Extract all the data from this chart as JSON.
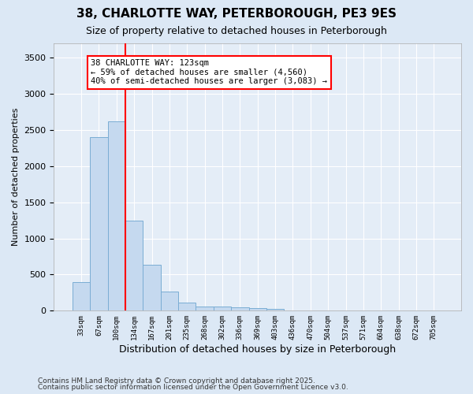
{
  "title_line1": "38, CHARLOTTE WAY, PETERBOROUGH, PE3 9ES",
  "title_line2": "Size of property relative to detached houses in Peterborough",
  "xlabel": "Distribution of detached houses by size in Peterborough",
  "ylabel": "Number of detached properties",
  "categories": [
    "33sqm",
    "67sqm",
    "100sqm",
    "134sqm",
    "167sqm",
    "201sqm",
    "235sqm",
    "268sqm",
    "302sqm",
    "336sqm",
    "369sqm",
    "403sqm",
    "436sqm",
    "470sqm",
    "504sqm",
    "537sqm",
    "571sqm",
    "604sqm",
    "638sqm",
    "672sqm",
    "705sqm"
  ],
  "values": [
    400,
    2400,
    2620,
    1250,
    640,
    270,
    110,
    60,
    55,
    50,
    40,
    25,
    0,
    0,
    0,
    0,
    0,
    0,
    0,
    0,
    0
  ],
  "bar_color": "#c5d9ef",
  "bar_edge_color": "#7aadd4",
  "red_line_x": 2.5,
  "annotation_title": "38 CHARLOTTE WAY: 123sqm",
  "annotation_line2": "← 59% of detached houses are smaller (4,560)",
  "annotation_line3": "40% of semi-detached houses are larger (3,083) →",
  "ylim": [
    0,
    3700
  ],
  "yticks": [
    0,
    500,
    1000,
    1500,
    2000,
    2500,
    3000,
    3500
  ],
  "footer1": "Contains HM Land Registry data © Crown copyright and database right 2025.",
  "footer2": "Contains public sector information licensed under the Open Government Licence v3.0.",
  "bg_color": "#dce8f5",
  "plot_bg_color": "#e4edf7",
  "grid_color": "#ffffff"
}
